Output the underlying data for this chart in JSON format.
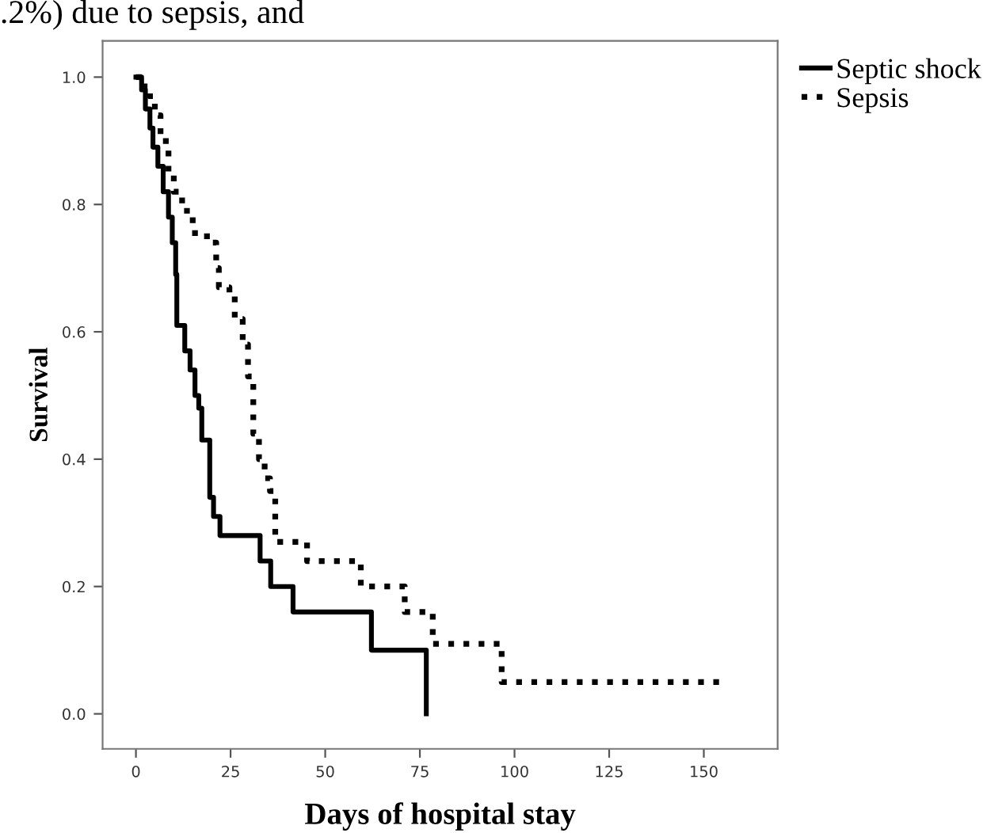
{
  "chart_data": {
    "type": "step",
    "xlabel": "Days of hospital stay",
    "ylabel": "Survival",
    "annotations": [
      ".2%) due to sepsis, and"
    ],
    "xlim": [
      -8.8,
      169.5
    ],
    "ylim": [
      -0.055,
      1.057
    ],
    "xticks": [
      0,
      25,
      50,
      75,
      100,
      125,
      150
    ],
    "yticks": [
      {
        "value": 0,
        "label": "0.0"
      },
      {
        "value": 0.2,
        "label": "0.2"
      },
      {
        "value": 0.4,
        "label": "0.4"
      },
      {
        "value": 0.6,
        "label": "0.6"
      },
      {
        "value": 0.8,
        "label": "0.8"
      },
      {
        "value": 1,
        "label": "1.0"
      }
    ],
    "grid": false,
    "legend": "top right",
    "marker": "none",
    "series": [
      {
        "name": "Septic shock",
        "color": "#000000",
        "line_style": "solid",
        "x": [
          0,
          1.5,
          2.5,
          3.7,
          4.5,
          5.8,
          7.2,
          8.6,
          9.6,
          10.5,
          10.8,
          12.9,
          14.3,
          15.6,
          16.6,
          17.4,
          19.5,
          20.5,
          22.2,
          32.8,
          35.6,
          41.5,
          62.2,
          76.7
        ],
        "values": [
          1.0,
          0.98,
          0.95,
          0.92,
          0.89,
          0.86,
          0.82,
          0.78,
          0.74,
          0.69,
          0.61,
          0.57,
          0.54,
          0.5,
          0.48,
          0.43,
          0.34,
          0.31,
          0.28,
          0.24,
          0.2,
          0.16,
          0.1,
          0.0
        ]
      },
      {
        "name": "Sepsis",
        "color": "#000000",
        "line_style": "dotted",
        "x": [
          0,
          2.3,
          3.7,
          5.0,
          6.5,
          7.9,
          8.6,
          10.0,
          12.2,
          15.0,
          15.6,
          19.8,
          21.2,
          21.9,
          24.7,
          26.1,
          28.2,
          29.6,
          31.0,
          32.5,
          34.0,
          35.4,
          36.8,
          45.2,
          59.4,
          71.0,
          78.4,
          96.6,
          154.4
        ],
        "values": [
          1.0,
          0.98,
          0.97,
          0.94,
          0.91,
          0.89,
          0.85,
          0.82,
          0.79,
          0.77,
          0.75,
          0.74,
          0.7,
          0.67,
          0.66,
          0.62,
          0.58,
          0.53,
          0.44,
          0.4,
          0.37,
          0.35,
          0.27,
          0.24,
          0.2,
          0.16,
          0.11,
          0.05,
          0.05
        ]
      }
    ]
  }
}
